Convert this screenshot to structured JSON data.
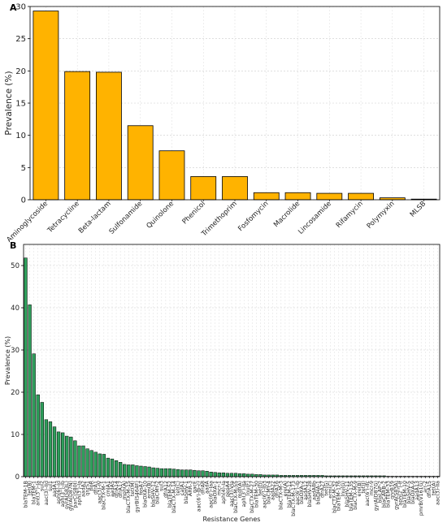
{
  "chart_data": [
    {
      "panel": "A",
      "type": "bar",
      "title": "",
      "xlabel": "",
      "ylabel": "Prevalence (%)",
      "ylim": [
        0,
        30
      ],
      "yticks": [
        0,
        5,
        10,
        15,
        20,
        25,
        30
      ],
      "grid": true,
      "bar_color": "#FFB300",
      "categories": [
        "Aminoglycoside",
        "Tetracycline",
        "Beta-lactam",
        "Sulfonamide",
        "Quinolone",
        "Phenicol",
        "Trimethoprim",
        "Fosfomycin",
        "Macrolide",
        "Lincosamide",
        "Rifamycin",
        "Polymyxin",
        "MLSB"
      ],
      "values": [
        29.3,
        19.9,
        19.8,
        11.5,
        7.6,
        3.6,
        3.6,
        1.1,
        1.1,
        1.0,
        1.0,
        0.3,
        0.1
      ]
    },
    {
      "panel": "B",
      "type": "bar",
      "title": "",
      "xlabel": "Resistance Genes",
      "ylabel": "Prevalence (%)",
      "ylim": [
        0,
        55
      ],
      "yticks": [
        0,
        10,
        20,
        30,
        40,
        50
      ],
      "grid": true,
      "bar_color": "#2E9E5B",
      "categories": [
        "blaTEM-1B",
        "tet(B)",
        "blaTEM-1",
        "ant(3'')-Ia",
        "sul2",
        "aac(3)-IId",
        "sul1",
        "aadA1",
        "aph(6)-Id",
        "aph(3'')-Ib",
        "gyrA(S83L)",
        "gyrA(D87N)",
        "parC(S80I)",
        "aph(3')-Ia",
        "aadA2",
        "qnrS1",
        "floR",
        "dfrA1",
        "aac(3)-IV",
        "blaCTX-M-1",
        "cmlA1",
        "aadA5",
        "dfrA14",
        "dfrA17",
        "mph(A)",
        "blaCTX-M-15",
        "tet(M)",
        "gyrB(S464F)",
        "fosA7",
        "blaOXA-10",
        "erm(B)",
        "blaSHV-12",
        "blaCMY-2",
        "sul3",
        "dfrA12",
        "blaTEM-52",
        "blaCTX-M-14",
        "tet(C)",
        "catA1",
        "blaSHV-1",
        "ARR-3",
        "qacE",
        "aac(6')-Ib-cr",
        "dfrA8",
        "aadA",
        "aac(6')-Iaa",
        "blaOXA-1",
        "mcr-1",
        "aph(4)-Ia",
        "qepA4",
        "aac(3)-VIa",
        "blaCTX-M-55",
        "mdf(A)",
        "aph(3')-IIa",
        "lnu(F)",
        "blaCTX-M-27",
        "blaTEM-30",
        "tet(D)",
        "aac(6')-Ib3",
        "blaCMY-4",
        "aadA22",
        "dfrA16",
        "blaCTX-M-3",
        "ere(A)",
        "blaTEM-12",
        "blaCTX-M-173",
        "aac(6')-Ib",
        "blaOXA-2",
        "aadA12",
        "blaSHV-28",
        "aadA8b",
        "blaDHA-1",
        "dfrA27",
        "tet(G)",
        "erm(C)",
        "blaCTX-M-32",
        "blaTEM-176",
        "lnu(G)",
        "blaSHV-11",
        "blaTEM-135",
        "blaCTX-M-9",
        "ere(B)",
        "tet(J)",
        "aac(6')-IIc",
        "mcr-9",
        "gyrA(D87G)",
        "blaLAP-2",
        "blaCARB-2",
        "blaTEM-33",
        "qnrB19",
        "gyrA(S83A)",
        "aph(2'')-If",
        "blaTEM-10",
        "blaSHV-5",
        "blaOXA-9",
        "aadA13",
        "pmrB(V161G)",
        "arr-2",
        "dfrA15",
        "tet(A)",
        "aac(3)-IIa"
      ],
      "values": [
        51.8,
        40.7,
        29.1,
        19.4,
        17.6,
        13.5,
        13.0,
        11.8,
        10.6,
        10.4,
        9.6,
        9.4,
        8.5,
        7.3,
        7.3,
        6.6,
        6.2,
        5.8,
        5.4,
        5.3,
        4.4,
        4.2,
        3.8,
        3.4,
        2.9,
        2.8,
        2.8,
        2.6,
        2.5,
        2.4,
        2.3,
        2.1,
        2.0,
        1.9,
        1.9,
        1.9,
        1.8,
        1.7,
        1.6,
        1.6,
        1.6,
        1.5,
        1.4,
        1.4,
        1.3,
        1.1,
        1.0,
        0.9,
        0.9,
        0.8,
        0.8,
        0.8,
        0.7,
        0.7,
        0.6,
        0.6,
        0.5,
        0.5,
        0.4,
        0.4,
        0.4,
        0.4,
        0.3,
        0.3,
        0.3,
        0.3,
        0.3,
        0.3,
        0.3,
        0.3,
        0.3,
        0.3,
        0.3,
        0.2,
        0.2,
        0.2,
        0.2,
        0.2,
        0.2,
        0.2,
        0.2,
        0.2,
        0.2,
        0.2,
        0.2,
        0.2,
        0.2,
        0.2,
        0.1,
        0.1,
        0.1,
        0.1,
        0.1,
        0.1,
        0.1,
        0.1,
        0.1,
        0.1,
        0.1,
        0.1,
        0.1
      ]
    }
  ]
}
